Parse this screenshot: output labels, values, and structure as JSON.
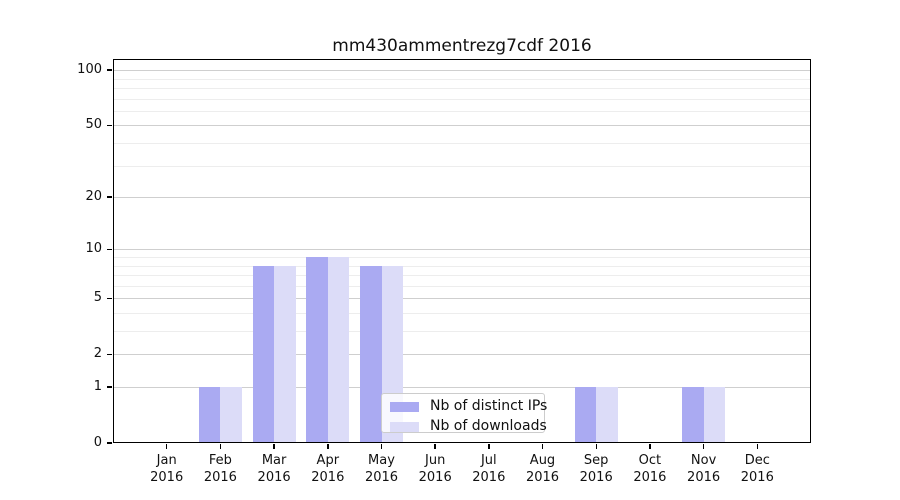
{
  "chart_data": {
    "type": "bar",
    "title": "mm430ammentrezg7cdf 2016",
    "categories": [
      "Jan",
      "Feb",
      "Mar",
      "Apr",
      "May",
      "Jun",
      "Jul",
      "Aug",
      "Sep",
      "Oct",
      "Nov",
      "Dec"
    ],
    "x_year_label": "2016",
    "series": [
      {
        "name": "Nb of distinct IPs",
        "color": "#aaaaf2",
        "values": [
          0,
          1,
          8,
          9,
          8,
          0,
          0,
          0,
          1,
          0,
          1,
          0
        ]
      },
      {
        "name": "Nb of downloads",
        "color": "#dcdcf8",
        "values": [
          0,
          1,
          8,
          9,
          8,
          0,
          0,
          0,
          1,
          0,
          1,
          0
        ]
      }
    ],
    "y_scale": "log1p",
    "y_axis_ticks": [
      0,
      1,
      2,
      5,
      10,
      20,
      50,
      100
    ],
    "y_minor_gridlines": [
      3,
      4,
      6,
      7,
      8,
      9,
      30,
      40,
      60,
      70,
      80,
      90
    ],
    "ylim": [
      0,
      115
    ],
    "grid": "horizontal major+minor",
    "legend_position": "lower center"
  }
}
